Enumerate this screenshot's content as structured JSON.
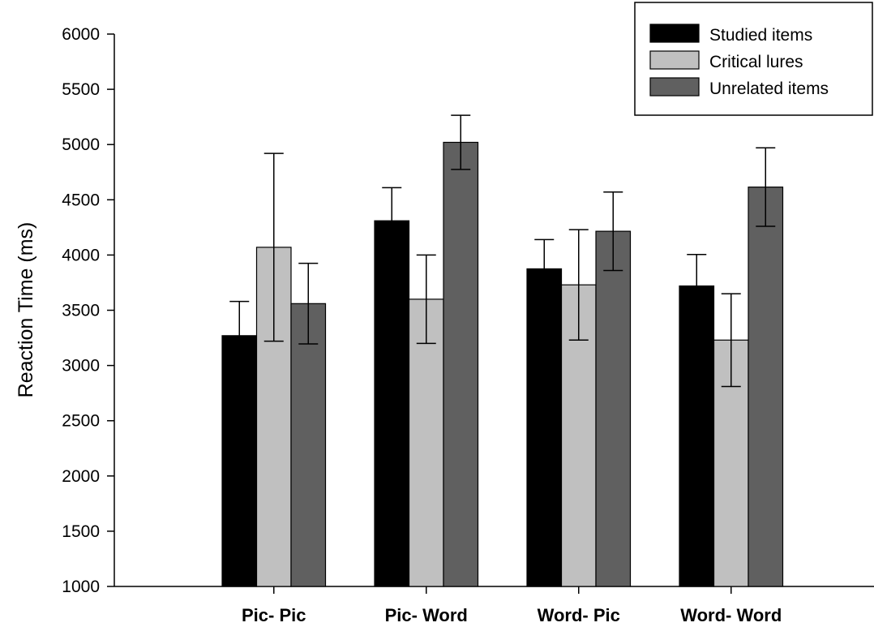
{
  "chart_data": {
    "type": "bar",
    "title": "",
    "xlabel": "",
    "ylabel": "Reaction Time (ms)",
    "ylim": [
      1000,
      6000
    ],
    "yticks": [
      1000,
      1500,
      2000,
      2500,
      3000,
      3500,
      4000,
      4500,
      5000,
      5500,
      6000
    ],
    "categories": [
      "Pic- Pic",
      "Pic- Word",
      "Word- Pic",
      "Word- Word"
    ],
    "legend_position": "top-right",
    "grid": false,
    "error_bars": true,
    "series": [
      {
        "name": "Studied items",
        "color": "#000000",
        "values": [
          3270,
          4310,
          3875,
          3720
        ],
        "errors": [
          310,
          300,
          265,
          285
        ]
      },
      {
        "name": "Critical lures",
        "color": "#c0c0c0",
        "values": [
          4070,
          3600,
          3730,
          3230
        ],
        "errors": [
          850,
          400,
          500,
          420
        ]
      },
      {
        "name": "Unrelated items",
        "color": "#606060",
        "values": [
          3560,
          5020,
          4215,
          4615
        ],
        "errors": [
          365,
          245,
          355,
          355
        ]
      }
    ]
  }
}
